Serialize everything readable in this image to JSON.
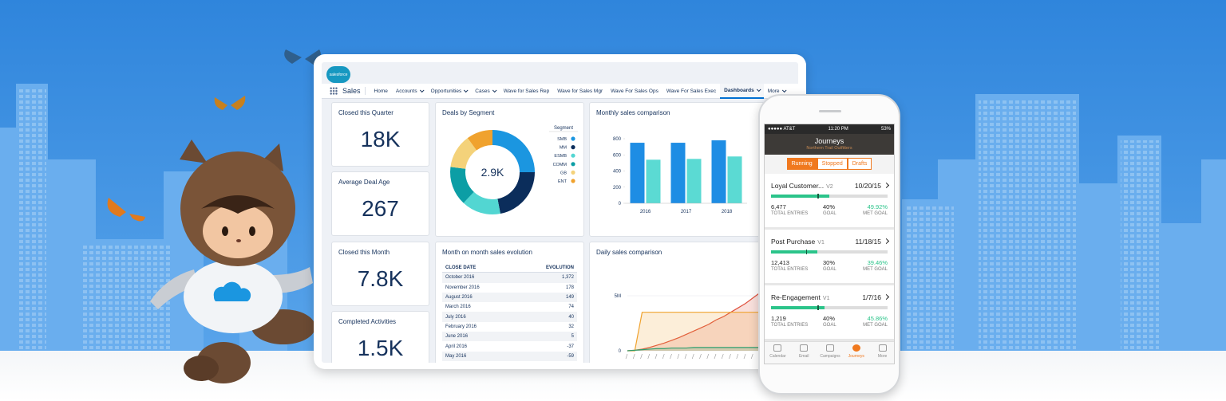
{
  "dashboard": {
    "logo": "salesforce",
    "app": "Sales",
    "nav": [
      "Home",
      "Accounts",
      "Opportunities",
      "Cases",
      "Wave for Sales Rep",
      "Wave for Sales Mgr",
      "Wave For Sales Ops",
      "Wave For Sales Exec",
      "Dashboards",
      "More"
    ],
    "tiles": [
      {
        "title": "Closed this Quarter",
        "value": "18K"
      },
      {
        "title": "Average Deal Age",
        "value": "267"
      },
      {
        "title": "Closed this Month",
        "value": "7.8K"
      },
      {
        "title": "Completed Activities",
        "value": "1.5K"
      }
    ],
    "table": {
      "title": "Month on month sales evolution",
      "header": [
        "CLOSE DATE",
        "EVOLUTION"
      ],
      "rows": [
        [
          "October 2016",
          "1,372"
        ],
        [
          "November 2016",
          "178"
        ],
        [
          "August 2016",
          "149"
        ],
        [
          "March 2016",
          "74"
        ],
        [
          "July 2016",
          "40"
        ],
        [
          "February 2016",
          "32"
        ],
        [
          "June 2016",
          "5"
        ],
        [
          "April 2016",
          "-37"
        ],
        [
          "May 2016",
          "-59"
        ]
      ]
    }
  },
  "chart_data": [
    {
      "type": "pie",
      "title": "Deals by Segment",
      "center_label": "2.9K",
      "legend_title": "Segment",
      "categories": [
        "SMB",
        "MM",
        "ESMB",
        "COMM",
        "GB",
        "ENT"
      ],
      "values": [
        25,
        22,
        15,
        15,
        13,
        10
      ],
      "colors": [
        "#1b96e0",
        "#0b2d5b",
        "#52d6d2",
        "#0c9ea5",
        "#f4d27a",
        "#f0a22e"
      ]
    },
    {
      "type": "bar",
      "title": "Monthly sales comparison",
      "categories": [
        "2016",
        "2017",
        "2018"
      ],
      "series": [
        {
          "color": "#1e8de4",
          "values": [
            750,
            750,
            780
          ]
        },
        {
          "color": "#5bdad3",
          "values": [
            540,
            550,
            580
          ]
        }
      ],
      "ylim": [
        0,
        800
      ],
      "yticks": [
        0,
        200,
        400,
        600,
        800
      ]
    },
    {
      "type": "area",
      "title": "Daily sales comparison",
      "categories": [
        null,
        null,
        null,
        null,
        null,
        null,
        null,
        null,
        null,
        null,
        null,
        null,
        null,
        null,
        null,
        null,
        null,
        null,
        null,
        null,
        null
      ],
      "series": [
        {
          "color": "#e0523f",
          "values": [
            0,
            50000,
            150000,
            300000,
            500000,
            700000,
            950000,
            1200000,
            1500000,
            1800000,
            2100000,
            2400000,
            2800000,
            3100000,
            3500000,
            3900000,
            4300000,
            4800000,
            5300000,
            5900000,
            6500000
          ]
        },
        {
          "color": "#f0a22e",
          "values": [
            0,
            0,
            3500000,
            3500000,
            3500000,
            3500000,
            3500000,
            3500000,
            3500000,
            3500000,
            3500000,
            3500000,
            3500000,
            3500000,
            3500000,
            3500000,
            3500000,
            3500000,
            3500000,
            3500000,
            3500000
          ]
        },
        {
          "color": "#2e9e6e",
          "values": [
            0,
            50000,
            100000,
            150000,
            200000,
            200000,
            250000,
            250000,
            250000,
            300000,
            300000,
            300000,
            300000,
            300000,
            300000,
            300000,
            300000,
            300000,
            300000,
            300000,
            300000
          ]
        }
      ],
      "ylim": [
        0,
        7500000
      ],
      "yticks": [
        0,
        {
          "value": 5000000,
          "label": "5M"
        }
      ]
    }
  ],
  "phone": {
    "status": {
      "carrier": "●●●●● AT&T",
      "time": "11:20 PM",
      "battery": "53%"
    },
    "title": "Journeys",
    "subtitle": "Northern Trail Outfitters",
    "tabs": [
      "Running",
      "Stopped",
      "Drafts"
    ],
    "cards": [
      {
        "name": "Loyal Customer...",
        "version": "V2",
        "date": "10/20/15",
        "entries": "6,477",
        "entries_label": "TOTAL ENTRIES",
        "goal": {
          "value": 40,
          "label": "40%"
        },
        "goal_label": "GOAL",
        "met": {
          "value": 49.92,
          "label": "49.92%"
        },
        "met_label": "MET GOAL"
      },
      {
        "name": "Post Purchase",
        "version": "V1",
        "date": "11/18/15",
        "entries": "12,413",
        "entries_label": "TOTAL ENTRIES",
        "goal": {
          "value": 30,
          "label": "30%"
        },
        "goal_label": "GOAL",
        "met": {
          "value": 39.46,
          "label": "39.46%"
        },
        "met_label": "MET GOAL"
      },
      {
        "name": "Re-Engagement",
        "version": "V1",
        "date": "1/7/16",
        "entries": "1,219",
        "entries_label": "TOTAL ENTRIES",
        "goal": {
          "value": 40,
          "label": "40%"
        },
        "goal_label": "GOAL",
        "met": {
          "value": 45.86,
          "label": "45.86%"
        },
        "met_label": "MET GOAL"
      }
    ],
    "nav": [
      "Calendar",
      "Email",
      "Campaigns",
      "Journeys",
      "More"
    ]
  }
}
